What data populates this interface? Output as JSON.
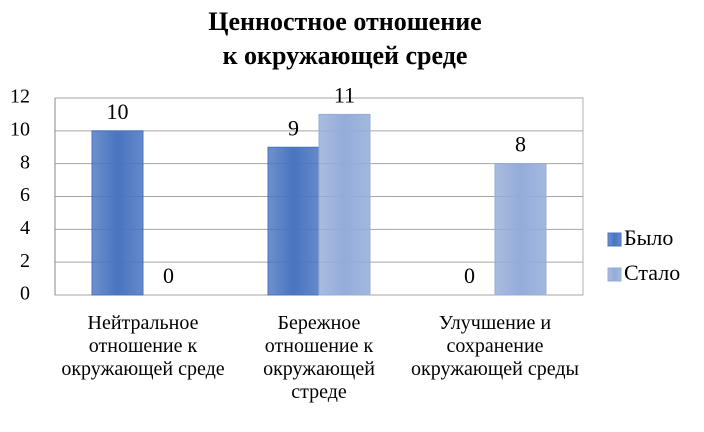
{
  "chart_data": {
    "type": "bar",
    "title": [
      "Ценностное отношение",
      "к окружающей среде"
    ],
    "categories": [
      "Нейтральное отношение к окружающей среде",
      "Бережное отношение к окружающей стреде",
      "Улучшение и сохранение окружающей среды"
    ],
    "series": [
      {
        "name": "Было",
        "color": "#4a74c0",
        "values": [
          10,
          9,
          0
        ]
      },
      {
        "name": "Стало",
        "color": "#94acd9",
        "values": [
          0,
          11,
          8
        ]
      }
    ],
    "ylim": [
      0,
      12
    ],
    "yticks": [
      0,
      2,
      4,
      6,
      8,
      10,
      12
    ],
    "grid": true,
    "legend": "right"
  }
}
